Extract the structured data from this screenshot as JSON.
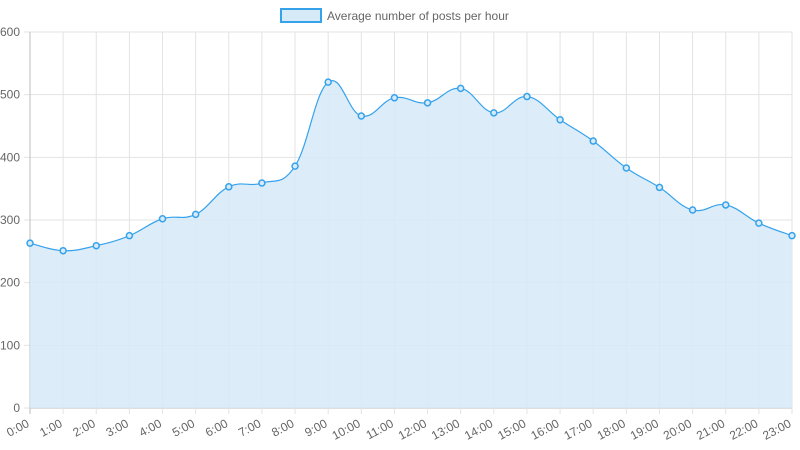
{
  "chart_data": {
    "type": "area",
    "categories": [
      "0:00",
      "1:00",
      "2:00",
      "3:00",
      "4:00",
      "5:00",
      "6:00",
      "7:00",
      "8:00",
      "9:00",
      "10:00",
      "11:00",
      "12:00",
      "13:00",
      "14:00",
      "15:00",
      "16:00",
      "17:00",
      "18:00",
      "19:00",
      "20:00",
      "21:00",
      "22:00",
      "23:00"
    ],
    "series": [
      {
        "name": "Average number of posts per hour",
        "values": [
          263,
          251,
          259,
          275,
          302,
          309,
          353,
          359,
          386,
          520,
          466,
          495,
          487,
          510,
          471,
          497,
          460,
          426,
          383,
          352,
          316,
          324,
          295,
          275
        ]
      }
    ],
    "title": "",
    "xlabel": "",
    "ylabel": "",
    "ylim": [
      0,
      600
    ],
    "yticks": [
      "0",
      "100",
      "200",
      "300",
      "400",
      "500",
      "600"
    ],
    "grid": true,
    "legend_position": "top-center",
    "colors": {
      "line": "#36a2eb",
      "fill": "#d6eaf8",
      "grid": "#e3e3e3",
      "text": "#666666"
    }
  }
}
